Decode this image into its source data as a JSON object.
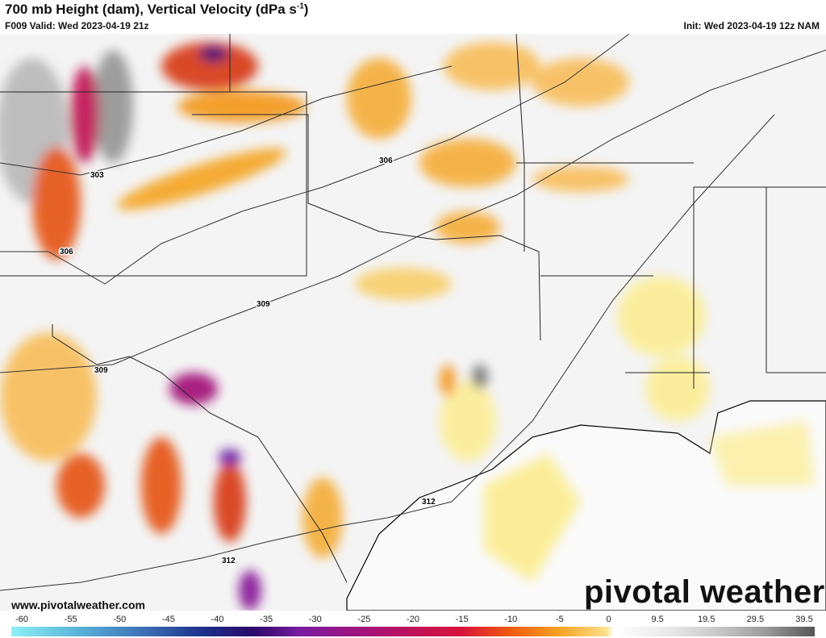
{
  "header": {
    "title": "700 mb Height (dam), Vertical Velocity (dPa s",
    "title_exponent": "-1",
    "title_end": ")",
    "valid": "F009 Valid: Wed 2023-04-19 21z",
    "init": "Init: Wed 2023-04-19 12z NAM"
  },
  "contour_labels": [
    "303",
    "306",
    "306",
    "309",
    "309",
    "312",
    "312"
  ],
  "colorbar": {
    "labels": [
      "-60",
      "-55",
      "-50",
      "-45",
      "-40",
      "-35",
      "-30",
      "-25",
      "-20",
      "-15",
      "-10",
      "-5",
      "0",
      "9.5",
      "19.5",
      "29.5",
      "39.5"
    ]
  },
  "watermark": {
    "site": "www.pivotalweather.com",
    "brand": "pivotal weather"
  }
}
